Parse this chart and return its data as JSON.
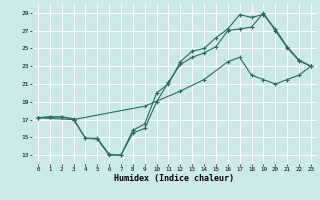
{
  "xlabel": "Humidex (Indice chaleur)",
  "xlim": [
    -0.5,
    23.5
  ],
  "ylim": [
    12.0,
    30.0
  ],
  "xticks": [
    0,
    1,
    2,
    3,
    4,
    5,
    6,
    7,
    8,
    9,
    10,
    11,
    12,
    13,
    14,
    15,
    16,
    17,
    18,
    19,
    20,
    21,
    22,
    23
  ],
  "yticks": [
    13,
    15,
    17,
    19,
    21,
    23,
    25,
    27,
    29
  ],
  "bg_color": "#cde8e8",
  "grid_color": "#ffffff",
  "line_color": "#2a6b5c",
  "line1_x": [
    0,
    1,
    2,
    3,
    4,
    5,
    6,
    7,
    8,
    9,
    10,
    11,
    12,
    13,
    14,
    15,
    16,
    17,
    18,
    19,
    20,
    21,
    22,
    23
  ],
  "line1_y": [
    17.2,
    17.3,
    17.3,
    17.1,
    14.9,
    14.9,
    13.1,
    13.0,
    15.5,
    16.0,
    19.0,
    21.2,
    23.2,
    24.0,
    24.5,
    25.2,
    27.0,
    27.2,
    27.4,
    29.0,
    27.0,
    25.1,
    23.6,
    23.0
  ],
  "line2_x": [
    0,
    1,
    2,
    3,
    4,
    5,
    6,
    7,
    8,
    9,
    10,
    11,
    12,
    13,
    14,
    15,
    16,
    17,
    18,
    19,
    20,
    21,
    22,
    23
  ],
  "line2_y": [
    17.2,
    17.3,
    17.3,
    17.0,
    14.9,
    14.8,
    13.0,
    13.0,
    15.8,
    16.5,
    20.0,
    21.0,
    23.5,
    24.7,
    25.0,
    26.2,
    27.2,
    28.8,
    28.5,
    28.8,
    27.2,
    25.2,
    23.7,
    23.0
  ],
  "line3_x": [
    0,
    3,
    9,
    12,
    14,
    16,
    17,
    18,
    19,
    20,
    21,
    22,
    23
  ],
  "line3_y": [
    17.2,
    17.0,
    18.5,
    20.2,
    21.5,
    23.5,
    24.0,
    22.0,
    21.5,
    21.0,
    21.5,
    22.0,
    23.0
  ]
}
